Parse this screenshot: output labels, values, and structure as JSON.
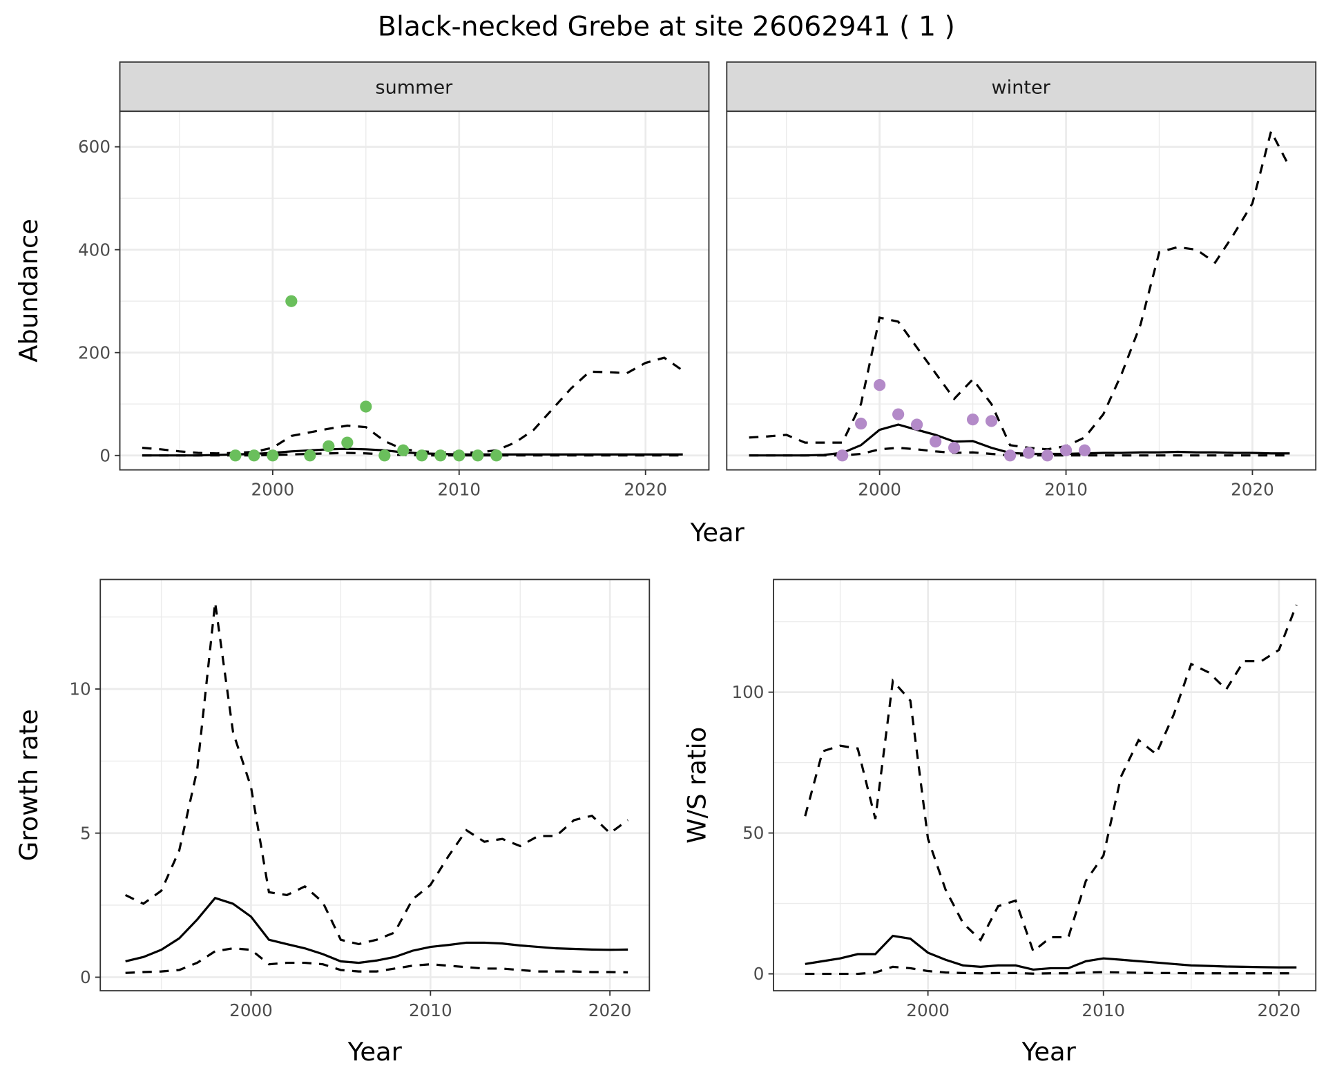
{
  "chart_data": [
    {
      "type": "line",
      "title": "Black-necked Grebe at site 26062941 ( 1 )",
      "panel": "summer",
      "xlabel": "Year",
      "ylabel": "Abundance",
      "xlim": [
        1991.8,
        2023.4
      ],
      "ylim": [
        -28,
        669
      ],
      "xticks": [
        2000,
        2010,
        2020
      ],
      "yticks": [
        0,
        200,
        400,
        600
      ],
      "x": [
        1993,
        1994,
        1995,
        1996,
        1997,
        1998,
        1999,
        2000,
        2001,
        2002,
        2003,
        2004,
        2005,
        2006,
        2007,
        2008,
        2009,
        2010,
        2011,
        2012,
        2013,
        2014,
        2015,
        2016,
        2017,
        2018,
        2019,
        2020,
        2021,
        2022
      ],
      "series": [
        {
          "name": "mean",
          "style": "solid",
          "values": [
            0,
            0,
            0,
            0,
            1,
            2,
            3,
            5,
            8,
            10,
            12,
            13,
            12,
            10,
            6,
            4,
            3,
            2,
            2,
            2,
            2,
            2,
            2,
            2,
            2,
            2,
            2,
            2,
            2,
            2
          ]
        },
        {
          "name": "upper",
          "style": "dashed",
          "values": [
            15,
            12,
            8,
            5,
            4,
            5,
            7,
            15,
            38,
            45,
            52,
            58,
            55,
            28,
            12,
            8,
            6,
            5,
            6,
            10,
            25,
            50,
            90,
            130,
            163,
            162,
            160,
            180,
            190,
            165
          ]
        },
        {
          "name": "lower",
          "style": "dashed",
          "values": [
            0,
            0,
            0,
            0,
            0,
            0,
            0,
            1,
            2,
            3,
            4,
            5,
            4,
            2,
            1,
            0,
            0,
            0,
            0,
            0,
            0,
            0,
            0,
            0,
            0,
            0,
            0,
            0,
            0,
            0
          ]
        }
      ],
      "points": {
        "color": "#6abf5c",
        "x": [
          1998,
          1999,
          2000,
          2001,
          2002,
          2003,
          2004,
          2005,
          2006,
          2007,
          2008,
          2009,
          2010,
          2011,
          2012
        ],
        "y": [
          0,
          0,
          0,
          300,
          0,
          18,
          25,
          95,
          0,
          10,
          0,
          0,
          0,
          0,
          0
        ]
      }
    },
    {
      "type": "line",
      "panel": "winter",
      "xlabel": "Year",
      "ylabel": "Abundance",
      "xlim": [
        1991.8,
        2023.4
      ],
      "ylim": [
        -28,
        669
      ],
      "xticks": [
        2000,
        2010,
        2020
      ],
      "yticks": [
        0,
        200,
        400,
        600
      ],
      "x": [
        1993,
        1994,
        1995,
        1996,
        1997,
        1998,
        1999,
        2000,
        2001,
        2002,
        2003,
        2004,
        2005,
        2006,
        2007,
        2008,
        2009,
        2010,
        2011,
        2012,
        2013,
        2014,
        2015,
        2016,
        2017,
        2018,
        2019,
        2020,
        2021,
        2022
      ],
      "series": [
        {
          "name": "mean",
          "style": "solid",
          "values": [
            0,
            0,
            0,
            0,
            1,
            5,
            20,
            50,
            60,
            50,
            40,
            27,
            28,
            15,
            5,
            3,
            3,
            3,
            4,
            5,
            5,
            6,
            6,
            7,
            6,
            6,
            5,
            5,
            4,
            4
          ]
        },
        {
          "name": "upper",
          "style": "dashed",
          "values": [
            35,
            37,
            40,
            25,
            25,
            25,
            100,
            268,
            260,
            210,
            160,
            110,
            148,
            100,
            20,
            15,
            12,
            18,
            35,
            80,
            160,
            255,
            395,
            405,
            400,
            375,
            430,
            490,
            630,
            560
          ]
        },
        {
          "name": "lower",
          "style": "dashed",
          "values": [
            0,
            0,
            0,
            0,
            0,
            0,
            3,
            12,
            15,
            12,
            8,
            5,
            6,
            3,
            0,
            0,
            0,
            0,
            0,
            0,
            0,
            0,
            0,
            0,
            0,
            0,
            0,
            0,
            0,
            0
          ]
        }
      ],
      "points": {
        "color": "#b38ac8",
        "x": [
          1998,
          1999,
          2000,
          2001,
          2002,
          2003,
          2004,
          2005,
          2006,
          2007,
          2008,
          2009,
          2010,
          2011
        ],
        "y": [
          0,
          62,
          137,
          80,
          60,
          27,
          15,
          70,
          67,
          0,
          5,
          0,
          10,
          10
        ]
      }
    },
    {
      "type": "line",
      "panel": "growth",
      "xlabel": "Year",
      "ylabel": "Growth rate",
      "xlim": [
        1991.6,
        2022.2
      ],
      "ylim": [
        -0.47,
        13.8
      ],
      "xticks": [
        2000,
        2010,
        2020
      ],
      "yticks": [
        0,
        5,
        10
      ],
      "x": [
        1993,
        1994,
        1995,
        1996,
        1997,
        1998,
        1999,
        2000,
        2001,
        2002,
        2003,
        2004,
        2005,
        2006,
        2007,
        2008,
        2009,
        2010,
        2011,
        2012,
        2013,
        2014,
        2015,
        2016,
        2017,
        2018,
        2019,
        2020,
        2021
      ],
      "series": [
        {
          "name": "mean",
          "style": "solid",
          "values": [
            0.55,
            0.7,
            0.95,
            1.35,
            2.0,
            2.75,
            2.55,
            2.1,
            1.3,
            1.15,
            1.0,
            0.8,
            0.55,
            0.5,
            0.58,
            0.7,
            0.92,
            1.05,
            1.12,
            1.2,
            1.2,
            1.17,
            1.1,
            1.05,
            1.0,
            0.98,
            0.96,
            0.95,
            0.96
          ]
        },
        {
          "name": "upper",
          "style": "dashed",
          "values": [
            2.85,
            2.55,
            3.0,
            4.4,
            7.2,
            13.0,
            8.5,
            6.6,
            2.95,
            2.85,
            3.15,
            2.6,
            1.3,
            1.15,
            1.3,
            1.55,
            2.7,
            3.2,
            4.2,
            5.1,
            4.7,
            4.8,
            4.55,
            4.9,
            4.9,
            5.45,
            5.6,
            5.0,
            5.45
          ]
        },
        {
          "name": "lower",
          "style": "dashed",
          "values": [
            0.15,
            0.18,
            0.2,
            0.25,
            0.5,
            0.9,
            1.0,
            0.95,
            0.45,
            0.5,
            0.5,
            0.45,
            0.25,
            0.2,
            0.2,
            0.3,
            0.4,
            0.45,
            0.4,
            0.35,
            0.3,
            0.3,
            0.25,
            0.2,
            0.2,
            0.2,
            0.18,
            0.18,
            0.17
          ]
        }
      ]
    },
    {
      "type": "line",
      "panel": "ratio",
      "xlabel": "Year",
      "ylabel": "W/S ratio",
      "xlim": [
        1991.2,
        2022.1
      ],
      "ylim": [
        -6,
        140
      ],
      "xticks": [
        2000,
        2010,
        2020
      ],
      "yticks": [
        0,
        50,
        100
      ],
      "x": [
        1993,
        1994,
        1995,
        1996,
        1997,
        1998,
        1999,
        2000,
        2001,
        2002,
        2003,
        2004,
        2005,
        2006,
        2007,
        2008,
        2009,
        2010,
        2011,
        2012,
        2013,
        2014,
        2015,
        2016,
        2017,
        2018,
        2019,
        2020,
        2021
      ],
      "series": [
        {
          "name": "mean",
          "style": "solid",
          "values": [
            3.5,
            4.5,
            5.5,
            7,
            7,
            13.5,
            12.5,
            7.5,
            5,
            3,
            2.5,
            3,
            3,
            1.5,
            2,
            2,
            4.5,
            5.5,
            5,
            4.5,
            4,
            3.5,
            3,
            2.8,
            2.6,
            2.5,
            2.4,
            2.3,
            2.3
          ]
        },
        {
          "name": "upper",
          "style": "dashed",
          "values": [
            56,
            79,
            81,
            80,
            55,
            104,
            97,
            48,
            30,
            18,
            12,
            24,
            26,
            8,
            13,
            13,
            33,
            42,
            70,
            83,
            78,
            92,
            110,
            107,
            101,
            111,
            111,
            115,
            131
          ]
        },
        {
          "name": "lower",
          "style": "dashed",
          "values": [
            0,
            0,
            0,
            0,
            0.5,
            2.5,
            2,
            1,
            0.5,
            0.3,
            0.2,
            0.3,
            0.3,
            0.1,
            0.2,
            0.2,
            0.5,
            0.6,
            0.5,
            0.4,
            0.3,
            0.3,
            0.2,
            0.2,
            0.2,
            0.2,
            0.2,
            0.2,
            0.2
          ]
        }
      ]
    }
  ],
  "title": "Black-necked Grebe at site 26062941 ( 1 )",
  "strips": [
    "summer",
    "winter"
  ],
  "labels": {
    "year": "Year",
    "abundance": "Abundance",
    "growth": "Growth rate",
    "ratio": "W/S ratio"
  }
}
